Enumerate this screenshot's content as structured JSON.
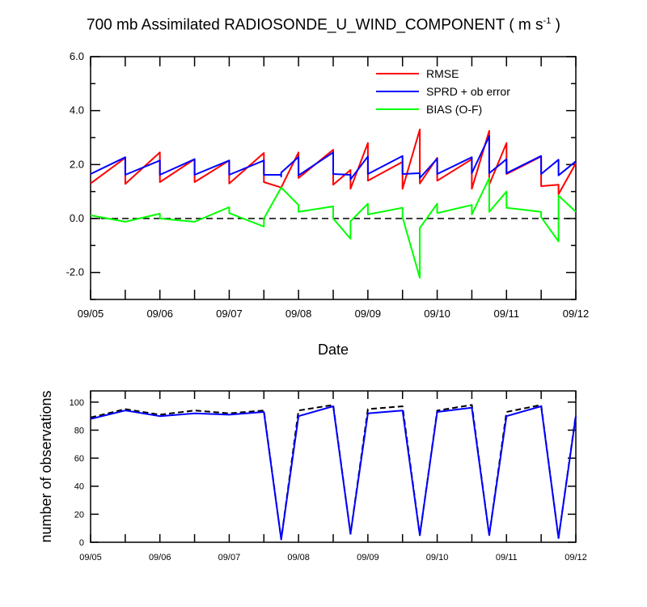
{
  "title": {
    "prefix": "700 mb Assimilated RADIOSONDE_U_WIND_COMPONENT ( m s",
    "sup": "-1",
    "suffix": " )"
  },
  "chart_data": [
    {
      "type": "line",
      "xlabel": "Date",
      "ylabel": "",
      "xlim": [
        "2012-09-05 00:00",
        "2012-09-12 00:00"
      ],
      "ylim": [
        -3.0,
        6.0
      ],
      "x_ticks": [
        "09/05",
        "09/06",
        "09/07",
        "09/08",
        "09/09",
        "09/10",
        "09/11",
        "09/12"
      ],
      "y_ticks": [
        "-2.0",
        "0.0",
        "2.0",
        "4.0",
        "6.0"
      ],
      "legend": "top-right",
      "series": [
        {
          "name": "RMSE",
          "color": "#ff0000",
          "points": [
            [
              "2012-09-05 00:00",
              1.3
            ],
            [
              "2012-09-05 12:00",
              2.25
            ],
            [
              "2012-09-05 12:00",
              1.28
            ],
            [
              "2012-09-06 00:00",
              2.45
            ],
            [
              "2012-09-06 00:00",
              1.35
            ],
            [
              "2012-09-06 12:00",
              2.2
            ],
            [
              "2012-09-06 12:00",
              1.35
            ],
            [
              "2012-09-07 00:00",
              2.15
            ],
            [
              "2012-09-07 00:00",
              1.3
            ],
            [
              "2012-09-07 12:00",
              2.43
            ],
            [
              "2012-09-07 12:00",
              1.35
            ],
            [
              "2012-09-07 18:00",
              1.15
            ],
            [
              "2012-09-08 00:00",
              2.45
            ],
            [
              "2012-09-08 00:00",
              1.5
            ],
            [
              "2012-09-08 12:00",
              2.55
            ],
            [
              "2012-09-08 12:00",
              1.25
            ],
            [
              "2012-09-08 18:00",
              1.8
            ],
            [
              "2012-09-08 18:00",
              1.1
            ],
            [
              "2012-09-09 00:00",
              2.8
            ],
            [
              "2012-09-09 00:00",
              1.4
            ],
            [
              "2012-09-09 12:00",
              2.1
            ],
            [
              "2012-09-09 12:00",
              1.1
            ],
            [
              "2012-09-09 18:00",
              3.3
            ],
            [
              "2012-09-09 18:00",
              1.3
            ],
            [
              "2012-09-10 00:00",
              2.25
            ],
            [
              "2012-09-10 00:00",
              1.4
            ],
            [
              "2012-09-10 12:00",
              2.2
            ],
            [
              "2012-09-10 12:00",
              1.1
            ],
            [
              "2012-09-10 18:00",
              3.25
            ],
            [
              "2012-09-10 18:00",
              1.25
            ],
            [
              "2012-09-11 00:00",
              2.8
            ],
            [
              "2012-09-11 00:00",
              1.65
            ],
            [
              "2012-09-11 12:00",
              2.3
            ],
            [
              "2012-09-11 12:00",
              1.2
            ],
            [
              "2012-09-11 18:00",
              1.25
            ],
            [
              "2012-09-11 18:00",
              0.9
            ],
            [
              "2012-09-12 00:00",
              2.05
            ]
          ]
        },
        {
          "name": "SPRD + ob error",
          "color": "#0000ff",
          "points": [
            [
              "2012-09-05 00:00",
              1.65
            ],
            [
              "2012-09-05 12:00",
              2.27
            ],
            [
              "2012-09-05 12:00",
              1.62
            ],
            [
              "2012-09-06 00:00",
              2.15
            ],
            [
              "2012-09-06 00:00",
              1.62
            ],
            [
              "2012-09-06 12:00",
              2.2
            ],
            [
              "2012-09-06 12:00",
              1.62
            ],
            [
              "2012-09-07 00:00",
              2.15
            ],
            [
              "2012-09-07 00:00",
              1.62
            ],
            [
              "2012-09-07 12:00",
              2.15
            ],
            [
              "2012-09-07 12:00",
              1.62
            ],
            [
              "2012-09-07 18:00",
              1.62
            ],
            [
              "2012-09-07 18:00",
              1.55
            ],
            [
              "2012-09-07 18:00",
              1.7
            ],
            [
              "2012-09-08 00:00",
              2.28
            ],
            [
              "2012-09-08 00:00",
              1.6
            ],
            [
              "2012-09-08 12:00",
              2.45
            ],
            [
              "2012-09-08 12:00",
              1.65
            ],
            [
              "2012-09-08 18:00",
              1.62
            ],
            [
              "2012-09-08 18:00",
              1.45
            ],
            [
              "2012-09-09 00:00",
              2.3
            ],
            [
              "2012-09-09 00:00",
              1.65
            ],
            [
              "2012-09-09 12:00",
              2.32
            ],
            [
              "2012-09-09 12:00",
              1.65
            ],
            [
              "2012-09-09 18:00",
              1.68
            ],
            [
              "2012-09-09 18:00",
              1.5
            ],
            [
              "2012-09-10 00:00",
              2.22
            ],
            [
              "2012-09-10 00:00",
              1.65
            ],
            [
              "2012-09-10 12:00",
              2.27
            ],
            [
              "2012-09-10 12:00",
              1.68
            ],
            [
              "2012-09-10 18:00",
              3.05
            ],
            [
              "2012-09-10 18:00",
              1.68
            ],
            [
              "2012-09-11 00:00",
              2.2
            ],
            [
              "2012-09-11 00:00",
              1.68
            ],
            [
              "2012-09-11 12:00",
              2.32
            ],
            [
              "2012-09-11 12:00",
              1.65
            ],
            [
              "2012-09-11 18:00",
              2.18
            ],
            [
              "2012-09-11 18:00",
              1.6
            ],
            [
              "2012-09-12 00:00",
              2.12
            ]
          ]
        },
        {
          "name": "BIAS (O-F)",
          "color": "#00ff00",
          "points": [
            [
              "2012-09-05 00:00",
              0.12
            ],
            [
              "2012-09-05 12:00",
              -0.12
            ],
            [
              "2012-09-06 00:00",
              0.18
            ],
            [
              "2012-09-06 00:00",
              0.0
            ],
            [
              "2012-09-06 12:00",
              -0.12
            ],
            [
              "2012-09-07 00:00",
              0.42
            ],
            [
              "2012-09-07 00:00",
              0.2
            ],
            [
              "2012-09-07 12:00",
              -0.3
            ],
            [
              "2012-09-07 12:00",
              0.0
            ],
            [
              "2012-09-07 18:00",
              1.15
            ],
            [
              "2012-09-08 00:00",
              0.5
            ],
            [
              "2012-09-08 00:00",
              0.25
            ],
            [
              "2012-09-08 12:00",
              0.45
            ],
            [
              "2012-09-08 12:00",
              0.0
            ],
            [
              "2012-09-08 18:00",
              -0.75
            ],
            [
              "2012-09-08 18:00",
              -0.1
            ],
            [
              "2012-09-09 00:00",
              0.55
            ],
            [
              "2012-09-09 00:00",
              0.15
            ],
            [
              "2012-09-09 12:00",
              0.4
            ],
            [
              "2012-09-09 12:00",
              0.05
            ],
            [
              "2012-09-09 18:00",
              -2.2
            ],
            [
              "2012-09-09 18:00",
              -0.35
            ],
            [
              "2012-09-10 00:00",
              0.55
            ],
            [
              "2012-09-10 00:00",
              0.2
            ],
            [
              "2012-09-10 12:00",
              0.5
            ],
            [
              "2012-09-10 12:00",
              0.15
            ],
            [
              "2012-09-10 18:00",
              1.5
            ],
            [
              "2012-09-10 18:00",
              0.25
            ],
            [
              "2012-09-11 00:00",
              1.0
            ],
            [
              "2012-09-11 00:00",
              0.4
            ],
            [
              "2012-09-11 12:00",
              0.25
            ],
            [
              "2012-09-11 12:00",
              0.05
            ],
            [
              "2012-09-11 18:00",
              -0.85
            ],
            [
              "2012-09-11 18:00",
              0.85
            ],
            [
              "2012-09-12 00:00",
              0.25
            ]
          ]
        }
      ],
      "reference_lines": [
        {
          "y": 0.0,
          "style": "dashed",
          "color": "#000000"
        }
      ]
    },
    {
      "type": "line",
      "xlabel": "",
      "ylabel": "number of observations",
      "xlim": [
        "2012-09-05 00:00",
        "2012-09-12 00:00"
      ],
      "ylim": [
        0,
        108
      ],
      "x_ticks": [
        "09/05",
        "09/06",
        "09/07",
        "09/08",
        "09/09",
        "09/10",
        "09/11",
        "09/12"
      ],
      "y_ticks": [
        "0",
        "20",
        "40",
        "60",
        "80",
        "100"
      ],
      "series": [
        {
          "color": "#000000",
          "style": "dashed",
          "points": [
            [
              "2012-09-05 00:00",
              89
            ],
            [
              "2012-09-05 12:00",
              95
            ],
            [
              "2012-09-06 00:00",
              91
            ],
            [
              "2012-09-06 12:00",
              94
            ],
            [
              "2012-09-07 00:00",
              92
            ],
            [
              "2012-09-07 12:00",
              94
            ],
            [
              "2012-09-07 18:00",
              2
            ],
            [
              "2012-09-08 00:00",
              94
            ],
            [
              "2012-09-08 12:00",
              98
            ],
            [
              "2012-09-08 18:00",
              6
            ],
            [
              "2012-09-09 00:00",
              95
            ],
            [
              "2012-09-09 12:00",
              97
            ],
            [
              "2012-09-09 18:00",
              5
            ],
            [
              "2012-09-10 00:00",
              94
            ],
            [
              "2012-09-10 12:00",
              98
            ],
            [
              "2012-09-10 18:00",
              5
            ],
            [
              "2012-09-11 00:00",
              93
            ],
            [
              "2012-09-11 12:00",
              98
            ],
            [
              "2012-09-11 18:00",
              3
            ],
            [
              "2012-09-12 00:00",
              91
            ]
          ]
        },
        {
          "color": "#0000ff",
          "style": "solid",
          "points": [
            [
              "2012-09-05 00:00",
              88
            ],
            [
              "2012-09-05 12:00",
              94
            ],
            [
              "2012-09-06 00:00",
              90
            ],
            [
              "2012-09-06 12:00",
              92
            ],
            [
              "2012-09-07 00:00",
              91
            ],
            [
              "2012-09-07 12:00",
              93
            ],
            [
              "2012-09-07 18:00",
              2
            ],
            [
              "2012-09-08 00:00",
              90
            ],
            [
              "2012-09-08 12:00",
              97
            ],
            [
              "2012-09-08 18:00",
              6
            ],
            [
              "2012-09-09 00:00",
              92
            ],
            [
              "2012-09-09 12:00",
              94
            ],
            [
              "2012-09-09 18:00",
              5
            ],
            [
              "2012-09-10 00:00",
              93
            ],
            [
              "2012-09-10 12:00",
              96
            ],
            [
              "2012-09-10 18:00",
              5
            ],
            [
              "2012-09-11 00:00",
              90
            ],
            [
              "2012-09-11 12:00",
              97
            ],
            [
              "2012-09-11 18:00",
              3
            ],
            [
              "2012-09-12 00:00",
              90
            ]
          ]
        }
      ]
    }
  ]
}
